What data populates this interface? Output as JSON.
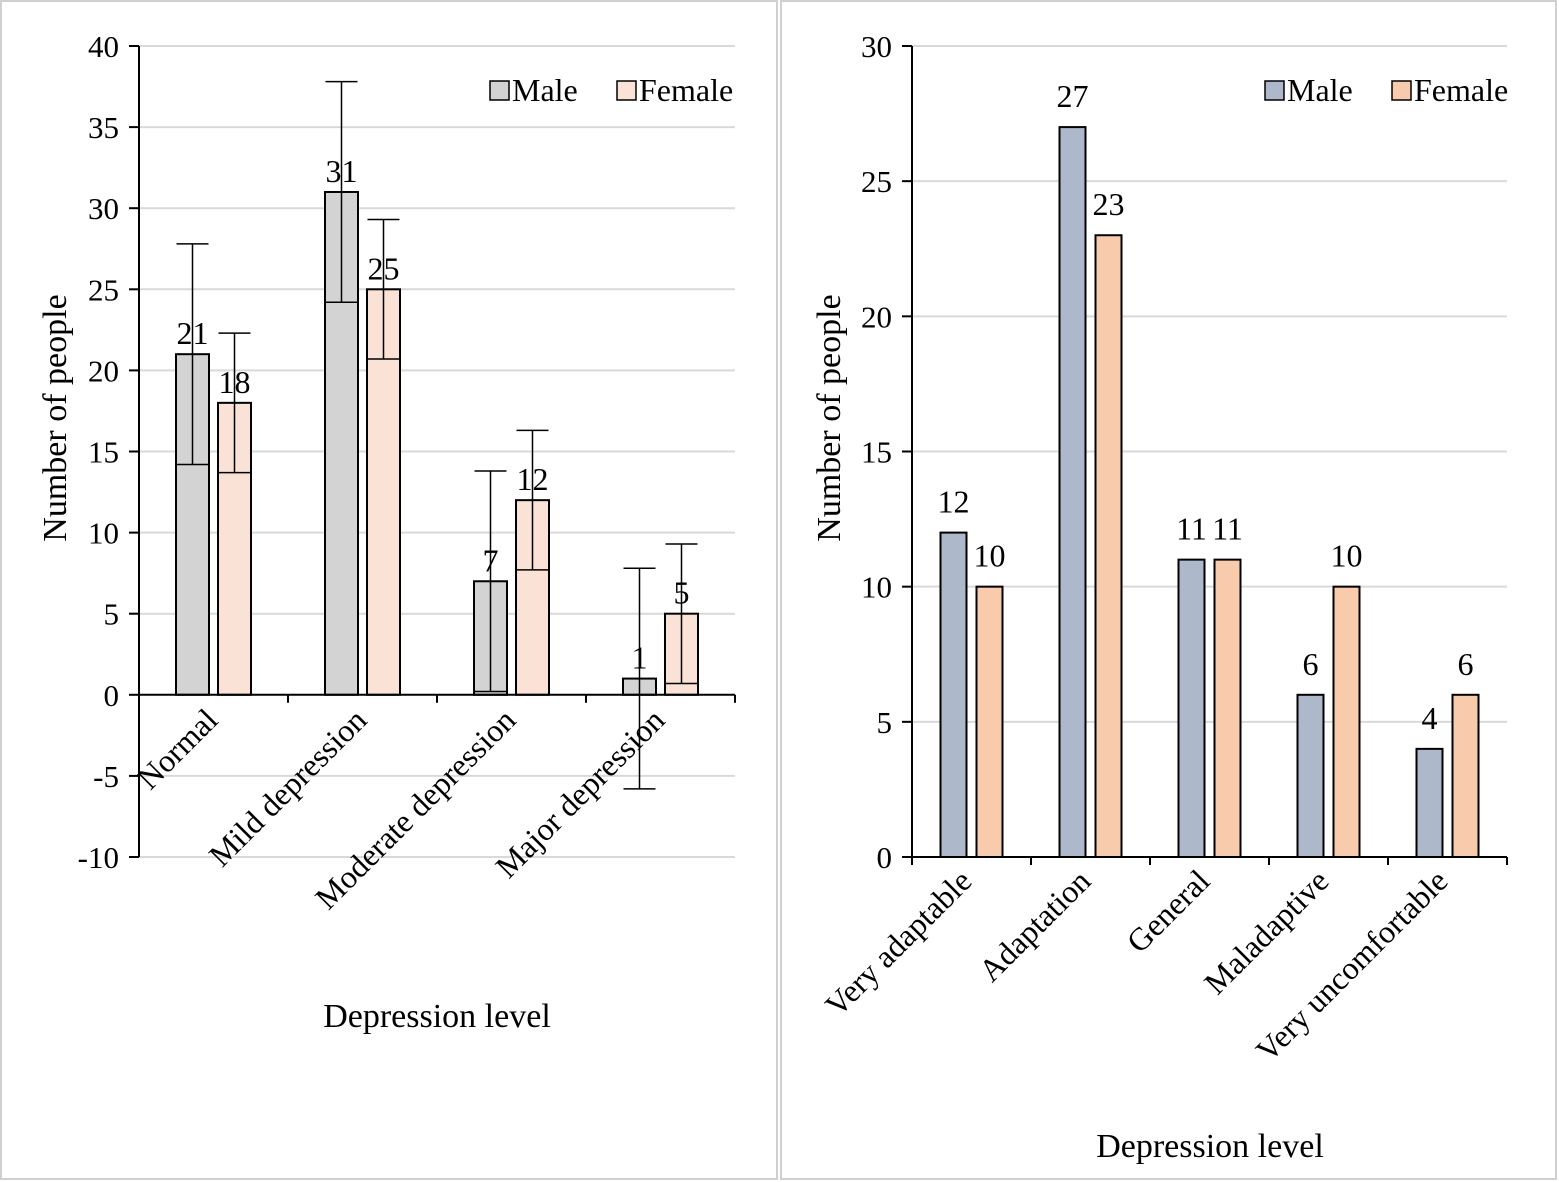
{
  "chart_data": [
    {
      "type": "bar",
      "categories": [
        "Normal",
        "Mild depression",
        "Moderate depression",
        "Major depression"
      ],
      "series": [
        {
          "name": "Male",
          "values": [
            21,
            31,
            7,
            1
          ],
          "errors": [
            6.8,
            6.8,
            6.8,
            6.8
          ],
          "color": "#d3d3d3"
        },
        {
          "name": "Female",
          "values": [
            18,
            25,
            12,
            5
          ],
          "errors": [
            4.3,
            4.3,
            4.3,
            4.3
          ],
          "color": "#fae3d6"
        }
      ],
      "data_labels": [
        [
          "21",
          "31",
          "7",
          "1"
        ],
        [
          "18",
          "25",
          "12",
          "5"
        ]
      ],
      "xlabel": "Depression level",
      "ylabel": "Number of people",
      "ylim": [
        -10,
        40
      ],
      "yticks": [
        -10,
        -5,
        0,
        5,
        10,
        15,
        20,
        25,
        30,
        35,
        40
      ],
      "ytick_labels": [
        "-10",
        "-5",
        "0",
        "5",
        "10",
        "15",
        "20",
        "25",
        "30",
        "35",
        "40"
      ],
      "grid": true,
      "legend": "top-right"
    },
    {
      "type": "bar",
      "categories": [
        "Very adaptable",
        "Adaptation",
        "General",
        "Maladaptive",
        "Very uncomfortable"
      ],
      "series": [
        {
          "name": "Male",
          "values": [
            12,
            27,
            11,
            6,
            4
          ],
          "color": "#adb9ca"
        },
        {
          "name": "Female",
          "values": [
            10,
            23,
            11,
            10,
            6
          ],
          "color": "#f8cbad"
        }
      ],
      "data_labels": [
        [
          "12",
          "27",
          "11",
          "6",
          "4"
        ],
        [
          "10",
          "23",
          "11",
          "10",
          "6"
        ]
      ],
      "xlabel": "Depression level",
      "ylabel": "Number of people",
      "ylim": [
        0,
        30
      ],
      "yticks": [
        0,
        5,
        10,
        15,
        20,
        25,
        30
      ],
      "ytick_labels": [
        "0",
        "5",
        "10",
        "15",
        "20",
        "25",
        "30"
      ],
      "grid": true,
      "legend": "top-right"
    }
  ]
}
